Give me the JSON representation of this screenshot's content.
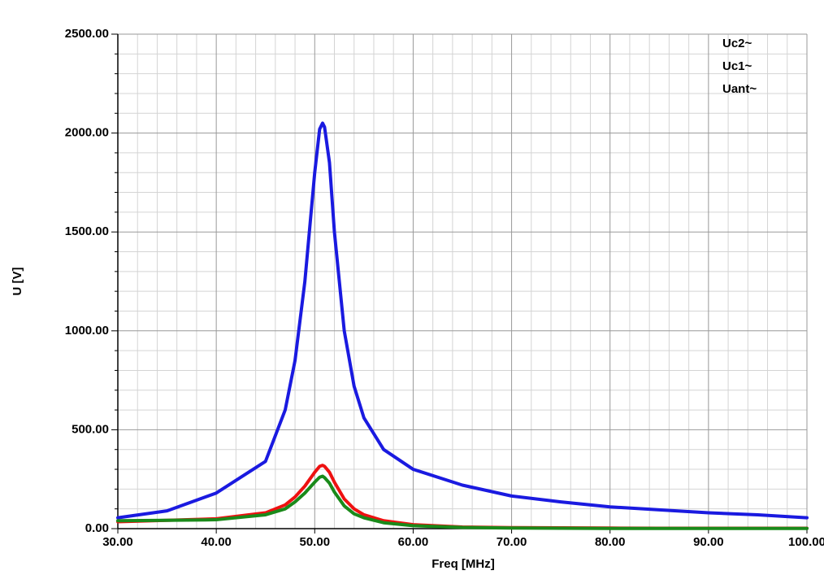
{
  "chart_data": {
    "type": "line",
    "xlabel": "Freq [MHz]",
    "ylabel": "U [V]",
    "x": [
      30,
      35,
      40,
      45,
      47,
      48,
      49,
      50,
      50.5,
      50.8,
      51,
      51.5,
      52,
      53,
      54,
      55,
      57,
      60,
      65,
      70,
      75,
      80,
      85,
      90,
      95,
      100
    ],
    "series": [
      {
        "name": "Uc2~",
        "color": "#ee1111",
        "values": [
          35,
          42,
          50,
          80,
          120,
          160,
          215,
          285,
          315,
          320,
          315,
          285,
          235,
          150,
          100,
          70,
          40,
          20,
          8,
          5,
          4,
          3,
          2,
          2,
          2,
          2
        ]
      },
      {
        "name": "Uc1~",
        "color": "#1a1ae0",
        "values": [
          55,
          90,
          180,
          340,
          600,
          850,
          1250,
          1800,
          2020,
          2050,
          2030,
          1850,
          1500,
          1000,
          720,
          560,
          400,
          300,
          220,
          165,
          135,
          110,
          95,
          80,
          70,
          55
        ]
      },
      {
        "name": "Uant~",
        "color": "#1a8a1a",
        "values": [
          40,
          42,
          45,
          70,
          100,
          135,
          180,
          235,
          260,
          265,
          258,
          230,
          185,
          115,
          75,
          55,
          30,
          15,
          6,
          3,
          2,
          1,
          1,
          1,
          1,
          1
        ]
      }
    ],
    "xlim": [
      30,
      100
    ],
    "xticks": [
      {
        "value": 30,
        "label": "30.00"
      },
      {
        "value": 40,
        "label": "40.00"
      },
      {
        "value": 50,
        "label": "50.00"
      },
      {
        "value": 60,
        "label": "60.00"
      },
      {
        "value": 70,
        "label": "70.00"
      },
      {
        "value": 80,
        "label": "80.00"
      },
      {
        "value": 90,
        "label": "90.00"
      },
      {
        "value": 100,
        "label": "100.00"
      }
    ],
    "ylim": [
      0,
      2500
    ],
    "yticks": [
      {
        "value": 0,
        "label": "0.00"
      },
      {
        "value": 500,
        "label": "500.00"
      },
      {
        "value": 1000,
        "label": "1000.00"
      },
      {
        "value": 1500,
        "label": "1500.00"
      },
      {
        "value": 2000,
        "label": "2000.00"
      },
      {
        "value": 2500,
        "label": "2500.00"
      }
    ],
    "grid": true,
    "minor_divisions": 5,
    "legend": "upper right"
  }
}
